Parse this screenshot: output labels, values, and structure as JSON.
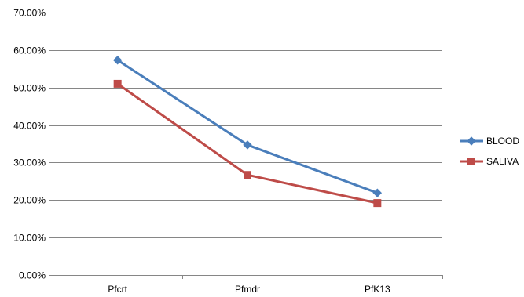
{
  "chart_data": {
    "type": "line",
    "categories": [
      "Pfcrt",
      "Pfmdr",
      "PfK13"
    ],
    "series": [
      {
        "name": "BLOOD",
        "values": [
          0.573,
          0.347,
          0.219
        ],
        "color": "#4a7ebb",
        "marker": "diamond"
      },
      {
        "name": "SALIVA",
        "values": [
          0.51,
          0.267,
          0.192
        ],
        "color": "#be4b48",
        "marker": "square"
      }
    ],
    "ylim": [
      0,
      0.7
    ],
    "yticks": [
      0,
      0.1,
      0.2,
      0.3,
      0.4,
      0.5,
      0.6,
      0.7
    ],
    "ytick_labels": [
      "0.00%",
      "10.00%",
      "20.00%",
      "30.00%",
      "40.00%",
      "50.00%",
      "60.00%",
      "70.00%"
    ],
    "grid": true,
    "legend_position": "right",
    "title": "",
    "xlabel": "",
    "ylabel": ""
  }
}
